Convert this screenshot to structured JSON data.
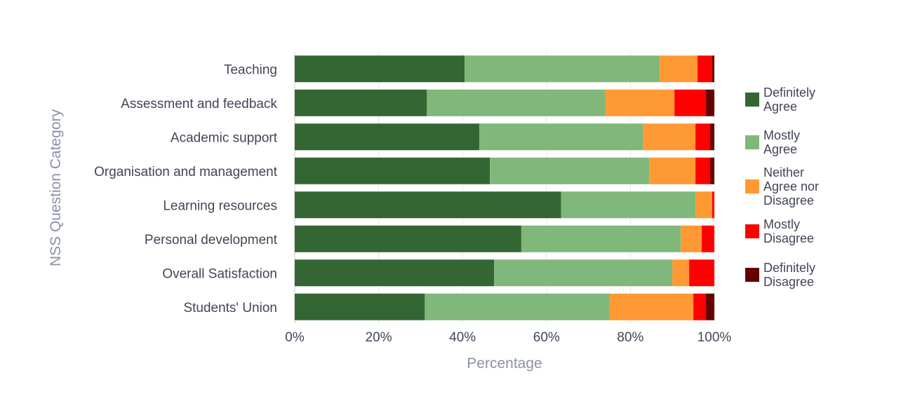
{
  "chart_data": {
    "type": "bar",
    "orientation": "horizontal",
    "stacked": true,
    "normalized": true,
    "title": "",
    "xlabel": "Percentage",
    "ylabel": "NSS Question Category",
    "xlim": [
      0,
      100
    ],
    "xticks": [
      "0%",
      "20%",
      "40%",
      "60%",
      "80%",
      "100%"
    ],
    "categories": [
      "Teaching",
      "Assessment and feedback",
      "Academic support",
      "Organisation and management",
      "Learning resources",
      "Personal development",
      "Overall Satisfaction",
      "Students' Union"
    ],
    "series": [
      {
        "name": "Definitely Agree",
        "legend_lines": [
          "Definitely",
          "Agree"
        ],
        "color": "#336633",
        "values": [
          40.5,
          31.5,
          44.0,
          46.5,
          63.5,
          54.0,
          47.5,
          31.0
        ]
      },
      {
        "name": "Mostly Agree",
        "legend_lines": [
          "Mostly",
          "Agree"
        ],
        "color": "#80b77a",
        "values": [
          46.5,
          42.5,
          39.0,
          38.0,
          32.0,
          38.0,
          42.5,
          44.0
        ]
      },
      {
        "name": "Neither Agree nor Disagree",
        "legend_lines": [
          "Neither",
          "Agree nor",
          "Disagree"
        ],
        "color": "#ff9933",
        "values": [
          9.0,
          16.5,
          12.5,
          11.0,
          4.0,
          5.0,
          4.0,
          20.0
        ]
      },
      {
        "name": "Mostly Disagree",
        "legend_lines": [
          "Mostly",
          "Disagree"
        ],
        "color": "#ff0000",
        "values": [
          3.5,
          7.5,
          3.5,
          3.5,
          0.5,
          3.0,
          6.0,
          3.0
        ]
      },
      {
        "name": "Definitely Disagree",
        "legend_lines": [
          "Definitely",
          "Disagree"
        ],
        "color": "#660000",
        "values": [
          0.5,
          2.0,
          1.0,
          1.0,
          0.0,
          0.0,
          0.0,
          2.0
        ]
      }
    ],
    "legend_position": "right",
    "grid": true
  }
}
